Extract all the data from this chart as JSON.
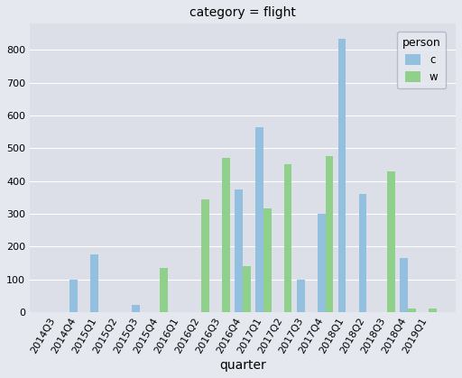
{
  "title": "category = flight",
  "xlabel": "quarter",
  "ylabel": "",
  "quarters": [
    "2014Q3",
    "2014Q4",
    "2015Q1",
    "2015Q2",
    "2015Q3",
    "2015Q4",
    "2016Q1",
    "2016Q2",
    "2016Q3",
    "2016Q4",
    "2017Q1",
    "2017Q2",
    "2017Q3",
    "2017Q4",
    "2018Q1",
    "2018Q2",
    "2018Q3",
    "2018Q4",
    "2019Q1"
  ],
  "c_values": [
    0,
    100,
    175,
    0,
    22,
    0,
    0,
    0,
    0,
    375,
    565,
    0,
    100,
    300,
    835,
    360,
    0,
    165,
    0
  ],
  "w_values": [
    0,
    0,
    0,
    0,
    0,
    135,
    0,
    345,
    470,
    140,
    315,
    450,
    0,
    475,
    0,
    0,
    430,
    10,
    10
  ],
  "color_c": "#92c0de",
  "color_w": "#8fd08a",
  "bg_color": "#e5e8ef",
  "plot_bg_color": "#dcdfe8",
  "legend_title": "person",
  "ylim": [
    0,
    880
  ],
  "yticks": [
    0,
    100,
    200,
    300,
    400,
    500,
    600,
    700,
    800
  ],
  "bar_width": 0.38,
  "figsize": [
    5.12,
    4.19
  ],
  "dpi": 100
}
